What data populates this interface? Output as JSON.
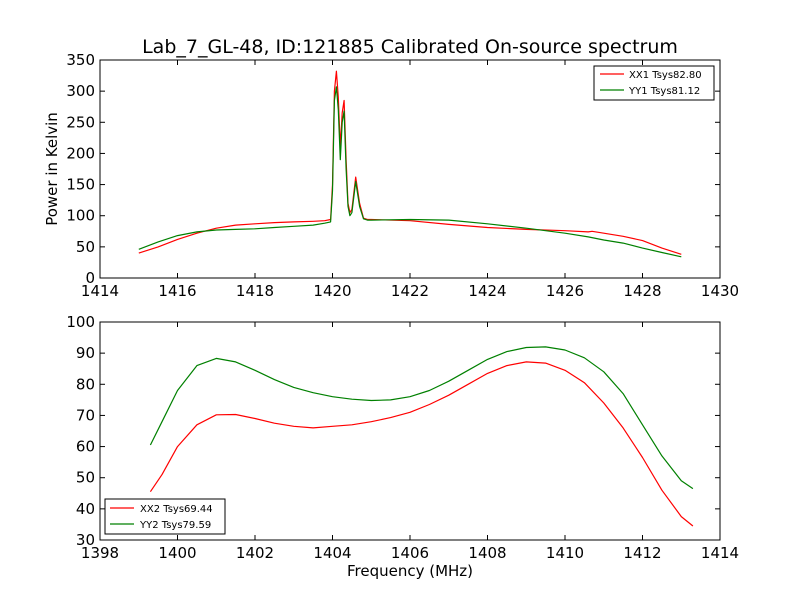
{
  "figure": {
    "title": "Lab_7_GL-48, ID:121885 Calibrated On-source spectrum",
    "xlabel": "Frequency (MHz)"
  },
  "chart_data": [
    {
      "type": "line",
      "title": "Lab_7_GL-48, ID:121885 Calibrated On-source spectrum",
      "xlabel": "",
      "ylabel": "Power in Kelvin",
      "xlim": [
        1414,
        1430
      ],
      "ylim": [
        0,
        350
      ],
      "xticks": [
        1414,
        1416,
        1418,
        1420,
        1422,
        1424,
        1426,
        1428,
        1430
      ],
      "yticks": [
        0,
        50,
        100,
        150,
        200,
        250,
        300,
        350
      ],
      "grid": false,
      "legend_position": "top-right",
      "series": [
        {
          "name": "XX1 Tsys82.80",
          "color": "#ff0000",
          "x": [
            1415.0,
            1415.5,
            1416.0,
            1416.5,
            1417.0,
            1417.5,
            1418.0,
            1418.5,
            1419.0,
            1419.5,
            1419.8,
            1419.95,
            1420.0,
            1420.05,
            1420.1,
            1420.15,
            1420.2,
            1420.25,
            1420.3,
            1420.35,
            1420.4,
            1420.45,
            1420.5,
            1420.6,
            1420.7,
            1420.8,
            1420.9,
            1421.0,
            1422.0,
            1423.0,
            1424.0,
            1425.0,
            1426.0,
            1426.6,
            1426.7,
            1427.0,
            1427.5,
            1428.0,
            1428.5,
            1429.0
          ],
          "y": [
            40,
            50,
            62,
            72,
            80,
            85,
            87,
            89,
            90,
            91,
            92,
            94,
            150,
            300,
            332,
            290,
            210,
            265,
            285,
            190,
            120,
            105,
            110,
            162,
            120,
            96,
            94,
            94,
            92,
            86,
            81,
            78,
            76,
            74,
            75,
            72,
            67,
            60,
            48,
            38
          ]
        },
        {
          "name": "YY1 Tsys81.12",
          "color": "#008000",
          "x": [
            1415.0,
            1415.5,
            1416.0,
            1416.5,
            1417.0,
            1417.5,
            1418.0,
            1418.5,
            1419.0,
            1419.5,
            1419.8,
            1419.95,
            1420.0,
            1420.05,
            1420.1,
            1420.15,
            1420.2,
            1420.25,
            1420.3,
            1420.35,
            1420.4,
            1420.45,
            1420.5,
            1420.6,
            1420.7,
            1420.8,
            1420.9,
            1421.0,
            1422.0,
            1423.0,
            1424.0,
            1425.0,
            1426.0,
            1426.6,
            1427.0,
            1427.5,
            1428.0,
            1428.5,
            1429.0
          ],
          "y": [
            46,
            58,
            68,
            74,
            77,
            78,
            79,
            81,
            83,
            85,
            88,
            90,
            140,
            285,
            307,
            270,
            190,
            250,
            268,
            175,
            115,
            100,
            105,
            155,
            115,
            95,
            93,
            93,
            94,
            93,
            87,
            80,
            72,
            66,
            61,
            56,
            48,
            41,
            34
          ]
        }
      ]
    },
    {
      "type": "line",
      "title": "",
      "xlabel": "Frequency (MHz)",
      "ylabel": "",
      "xlim": [
        1398,
        1414
      ],
      "ylim": [
        30,
        100
      ],
      "xticks": [
        1398,
        1400,
        1402,
        1404,
        1406,
        1408,
        1410,
        1412,
        1414
      ],
      "yticks": [
        30,
        40,
        50,
        60,
        70,
        80,
        90,
        100
      ],
      "grid": false,
      "legend_position": "bottom-left",
      "series": [
        {
          "name": "XX2 Tsys69.44",
          "color": "#ff0000",
          "x": [
            1399.3,
            1399.6,
            1400.0,
            1400.5,
            1401.0,
            1401.5,
            1402.0,
            1402.5,
            1403.0,
            1403.5,
            1404.0,
            1404.5,
            1405.0,
            1405.5,
            1406.0,
            1406.5,
            1407.0,
            1407.5,
            1408.0,
            1408.5,
            1409.0,
            1409.5,
            1410.0,
            1410.5,
            1411.0,
            1411.5,
            1412.0,
            1412.5,
            1413.0,
            1413.3
          ],
          "y": [
            45.5,
            51,
            60,
            67,
            70.2,
            70.3,
            69,
            67.5,
            66.5,
            66,
            66.5,
            67,
            68,
            69.3,
            71,
            73.5,
            76.5,
            80,
            83.5,
            86,
            87.2,
            86.8,
            84.5,
            80.5,
            74,
            66,
            56.5,
            46,
            37.5,
            34.5
          ]
        },
        {
          "name": "YY2 Tsys79.59",
          "color": "#008000",
          "x": [
            1399.3,
            1399.6,
            1400.0,
            1400.5,
            1401.0,
            1401.5,
            1402.0,
            1402.5,
            1403.0,
            1403.5,
            1404.0,
            1404.5,
            1405.0,
            1405.5,
            1406.0,
            1406.5,
            1407.0,
            1407.5,
            1408.0,
            1408.5,
            1409.0,
            1409.5,
            1410.0,
            1410.5,
            1411.0,
            1411.5,
            1412.0,
            1412.5,
            1413.0,
            1413.3
          ],
          "y": [
            60.5,
            68,
            78,
            86,
            88.3,
            87.2,
            84.5,
            81.5,
            79,
            77.3,
            76,
            75.2,
            74.8,
            75,
            76,
            78,
            81,
            84.5,
            88,
            90.5,
            91.8,
            92,
            91,
            88.5,
            84,
            77,
            67,
            57,
            49,
            46.5
          ]
        }
      ]
    }
  ]
}
